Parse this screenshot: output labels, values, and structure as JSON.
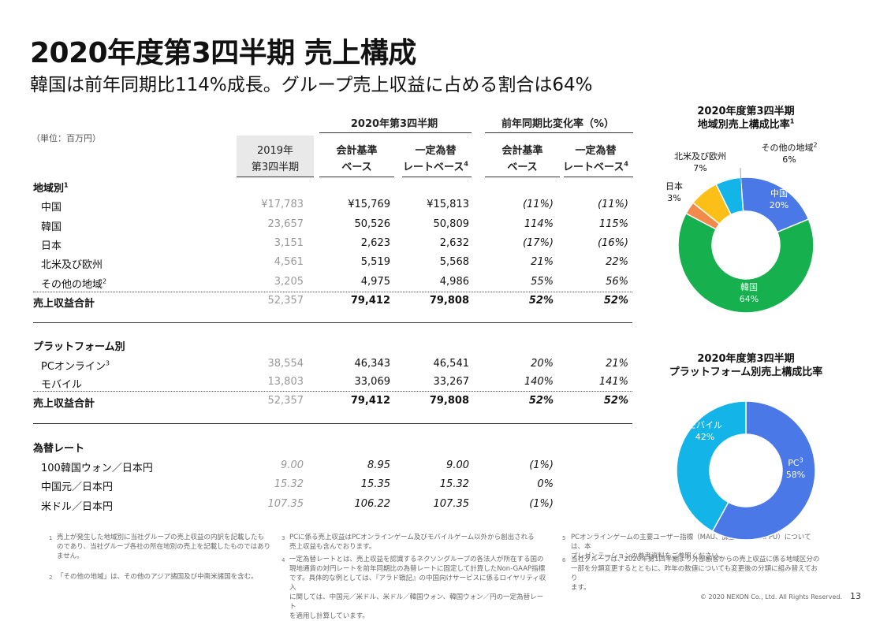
{
  "title": "2020年度第3四半期 売上構成",
  "subtitle": "韓国は前年同期比114%成長。グループ売上収益に占める割合は64%",
  "table": {
    "unit": "（単位：百万円）",
    "group_2020": "2020年第3四半期",
    "group_change": "前年同期比変化率（%）",
    "col_2019_l1": "2019年",
    "col_2019_l2": "第3四半期",
    "col_acct_l1": "会計基準",
    "col_acct_l2": "ベース",
    "col_const_l1": "一定為替",
    "col_const_l2": "レートベース",
    "col_const_sup": "4",
    "col_acct2_l1": "会計基準",
    "col_acct2_l2": "ベース",
    "col_const2_l1": "一定為替",
    "col_const2_l2": "レートベース",
    "col_const2_sup": "4",
    "region_header": "地域別",
    "region_sup": "1",
    "region_rows": [
      {
        "label": "中国",
        "sup": "",
        "v2019": "¥17,783",
        "acct": "¥15,769",
        "const": "¥15,813",
        "chg_acct": "(11%)",
        "chg_const": "(11%)"
      },
      {
        "label": "韓国",
        "sup": "",
        "v2019": "23,657",
        "acct": "50,526",
        "const": "50,809",
        "chg_acct": "114%",
        "chg_const": "115%"
      },
      {
        "label": "日本",
        "sup": "",
        "v2019": "3,151",
        "acct": "2,623",
        "const": "2,632",
        "chg_acct": "(17%)",
        "chg_const": "(16%)"
      },
      {
        "label": "北米及び欧州",
        "sup": "",
        "v2019": "4,561",
        "acct": "5,519",
        "const": "5,568",
        "chg_acct": "21%",
        "chg_const": "22%"
      },
      {
        "label": "その他の地域",
        "sup": "2",
        "v2019": "3,205",
        "acct": "4,975",
        "const": "4,986",
        "chg_acct": "55%",
        "chg_const": "56%"
      }
    ],
    "region_total": {
      "label": "売上収益合計",
      "v2019": "52,357",
      "acct": "79,412",
      "const": "79,808",
      "chg_acct": "52%",
      "chg_const": "52%"
    },
    "platform_header": "プラットフォーム別",
    "platform_rows": [
      {
        "label": "PCオンライン",
        "sup": "3",
        "v2019": "38,554",
        "acct": "46,343",
        "const": "46,541",
        "chg_acct": "20%",
        "chg_const": "21%"
      },
      {
        "label": "モバイル",
        "sup": "",
        "v2019": "13,803",
        "acct": "33,069",
        "const": "33,267",
        "chg_acct": "140%",
        "chg_const": "141%"
      }
    ],
    "platform_total": {
      "label": "売上収益合計",
      "v2019": "52,357",
      "acct": "79,412",
      "const": "79,808",
      "chg_acct": "52%",
      "chg_const": "52%"
    },
    "fx_header": "為替レート",
    "fx_rows": [
      {
        "label": "100韓国ウォン／日本円",
        "v2019": "9.00",
        "acct": "8.95",
        "const": "9.00",
        "chg_acct": "(1%)"
      },
      {
        "label": "中国元／日本円",
        "v2019": "15.32",
        "acct": "15.35",
        "const": "15.32",
        "chg_acct": "0%"
      },
      {
        "label": "米ドル／日本円",
        "v2019": "107.35",
        "acct": "106.22",
        "const": "107.35",
        "chg_acct": "(1%)"
      }
    ]
  },
  "footnotes": [
    {
      "num": "1",
      "text_l1": "売上が発生した地域別に当社グループの売上収益の内訳を記載したも",
      "text_l2": "のであり、当社グループ各社の所在地別の売上を記載したものではあり",
      "text_l3": "ません。"
    },
    {
      "num": "2",
      "text_l1": "「その他の地域」は、その他のアジア諸国及び中南米諸国を含む。"
    },
    {
      "num": "3",
      "text_l1": "PCに係る売上収益はPCオンラインゲーム及びモバイルゲーム以外から創出される",
      "text_l2": "売上収益も含んでおります。"
    },
    {
      "num": "4",
      "text_l1": "一定為替レートとは、売上収益を認識するネクソングループの各法人が所在する国の",
      "text_l2": "現地通貨の対円レートを前年同期比の為替レートに固定して計算したNon-GAAP指標",
      "text_l3": "です。具体的な例としては、『アラド戦記』の中国向けサービスに係るロイヤリティ収入",
      "text_l4": "に関しては、中国元／米ドル、米ドル／韓国ウォン、韓国ウォン／円の一定為替レート",
      "text_l5": "を適用し計算しています。"
    },
    {
      "num": "5",
      "text_l1": "PCオンラインゲームの主要ユーザー指標（MAU、課金率及びARPPU）については、本",
      "text_l2": "プレゼンテーションの参考資料をご参照ください。"
    },
    {
      "num": "6",
      "text_l1": "当社グループは、2020年第1四半期より外部顧客からの売上収益に係る地域区分の",
      "text_l2": "一部を分類変更するとともに、昨年の数値についても変更後の分類に組み替えており",
      "text_l3": "ます。"
    }
  ],
  "chart_data": [
    {
      "type": "pie",
      "title_l1": "2020年度第3四半期",
      "title_l2": "地域別売上構成比率",
      "title_sup": "1",
      "slices": [
        {
          "label": "中国",
          "value": 20,
          "display": "20%",
          "color": "#4a78e6"
        },
        {
          "label": "韓国",
          "value": 64,
          "display": "64%",
          "color": "#16b04e"
        },
        {
          "label": "日本",
          "value": 3,
          "display": "3%",
          "color": "#f28a4b"
        },
        {
          "label": "北米及び欧州",
          "value": 7,
          "display": "7%",
          "color": "#fbbf18"
        },
        {
          "label": "その他の地域",
          "label_sup": "2",
          "value": 6,
          "display": "6%",
          "color": "#13b4e8"
        }
      ]
    },
    {
      "type": "pie",
      "title_l1": "2020年度第3四半期",
      "title_l2": "プラットフォーム別売上構成比率",
      "slices": [
        {
          "label": "PC",
          "label_sup": "3",
          "value": 58,
          "display": "58%",
          "color": "#4a78e6"
        },
        {
          "label": "モバイル",
          "value": 42,
          "display": "42%",
          "color": "#13b4e8"
        }
      ]
    }
  ],
  "copyright": "© 2020 NEXON Co., Ltd. All Rights Reserved.",
  "page_number": "13"
}
